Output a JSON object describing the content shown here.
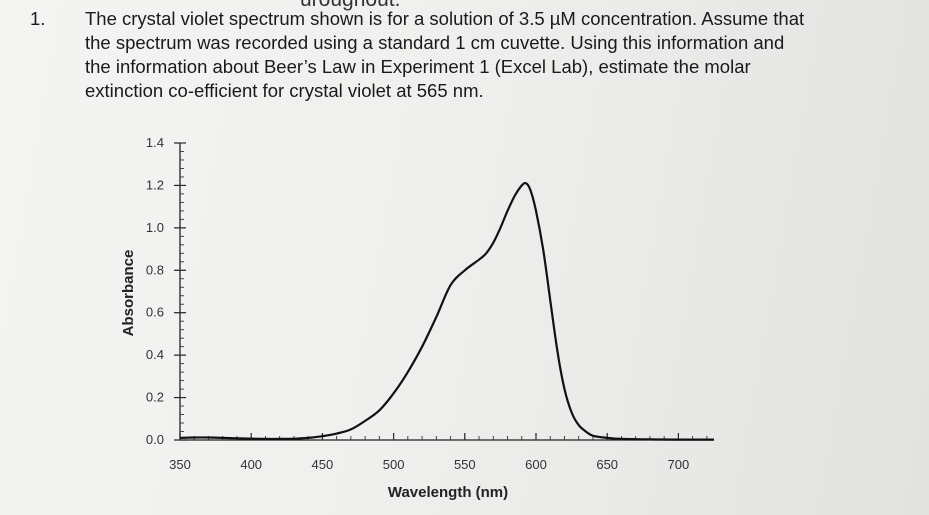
{
  "header_fragment": "uroughout.",
  "question": {
    "number": "1.",
    "lines": [
      "The crystal violet spectrum shown is for a solution of 3.5 µM concentration. Assume that",
      "the spectrum was recorded using a standard 1 cm cuvette. Using this information and",
      "the information about Beer’s Law in Experiment 1 (Excel Lab), estimate the molar",
      "extinction co-efficient for crystal violet at 565 nm."
    ]
  },
  "chart_data": {
    "type": "line",
    "xlabel": "Wavelength (nm)",
    "ylabel": "Absorbance",
    "xlim": [
      350,
      725
    ],
    "ylim": [
      0,
      1.4
    ],
    "x_ticks": [
      350,
      400,
      450,
      500,
      550,
      600,
      650,
      700
    ],
    "y_ticks": [
      0.0,
      0.2,
      0.4,
      0.6,
      0.8,
      1.0,
      1.2,
      1.4
    ],
    "x_tick_labels": [
      "350",
      "400",
      "450",
      "500",
      "550",
      "600",
      "650",
      "700"
    ],
    "y_tick_labels": [
      "0.0",
      "0.2",
      "0.4",
      "0.6",
      "0.8",
      "1.0",
      "1.2",
      "1.4"
    ],
    "grid": false,
    "series": [
      {
        "x": [
          350,
          360,
          370,
          380,
          390,
          400,
          410,
          420,
          430,
          440,
          450,
          460,
          470,
          480,
          490,
          500,
          510,
          520,
          530,
          540,
          550,
          560,
          565,
          570,
          575,
          580,
          585,
          590,
          593,
          596,
          600,
          605,
          610,
          615,
          620,
          625,
          630,
          635,
          640,
          650,
          660,
          680,
          700,
          725
        ],
        "y": [
          0.01,
          0.012,
          0.012,
          0.01,
          0.008,
          0.006,
          0.005,
          0.005,
          0.006,
          0.01,
          0.018,
          0.03,
          0.05,
          0.09,
          0.14,
          0.22,
          0.32,
          0.44,
          0.58,
          0.73,
          0.8,
          0.85,
          0.88,
          0.93,
          1.0,
          1.08,
          1.15,
          1.2,
          1.21,
          1.18,
          1.08,
          0.9,
          0.66,
          0.42,
          0.24,
          0.13,
          0.07,
          0.04,
          0.02,
          0.01,
          0.005,
          0.003,
          0.002,
          0.002
        ],
        "color": "#111111"
      }
    ]
  }
}
